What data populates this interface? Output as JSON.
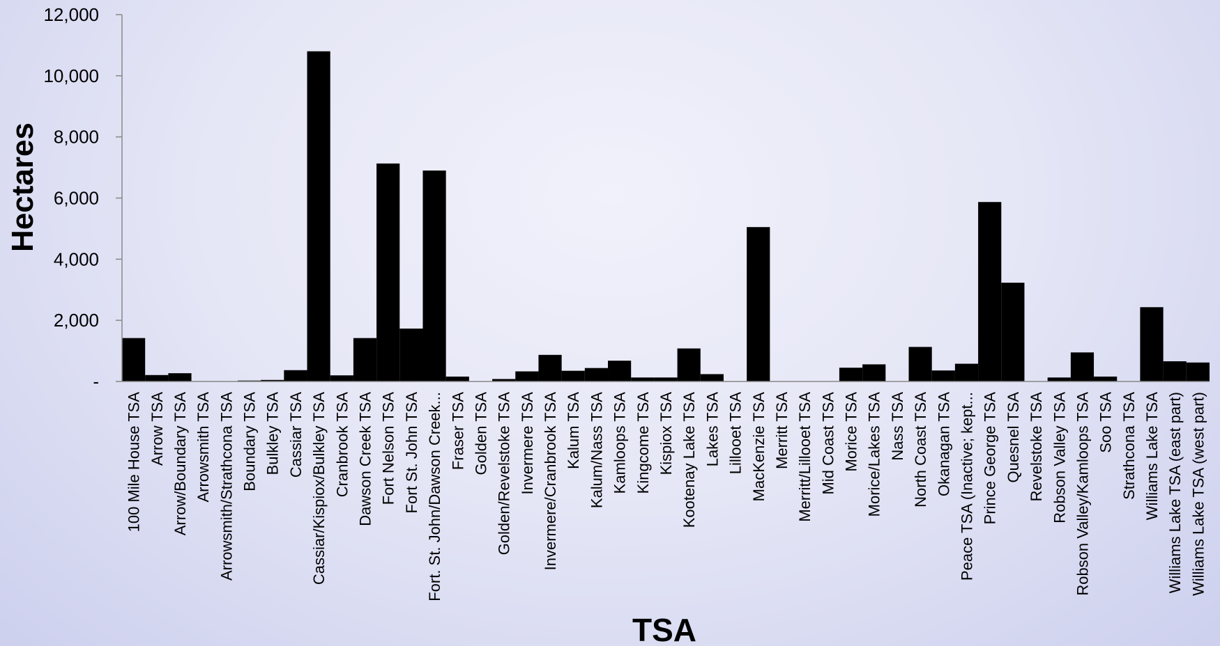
{
  "chart_data": {
    "type": "bar",
    "title": "",
    "xlabel": "TSA",
    "ylabel": "Hectares",
    "ylim": [
      0,
      12000
    ],
    "y_ticks": [
      {
        "value": 0,
        "label": "-"
      },
      {
        "value": 2000,
        "label": "2,000"
      },
      {
        "value": 4000,
        "label": "4,000"
      },
      {
        "value": 6000,
        "label": "6,000"
      },
      {
        "value": 8000,
        "label": "8,000"
      },
      {
        "value": 10000,
        "label": "10,000"
      },
      {
        "value": 12000,
        "label": "12,000"
      }
    ],
    "bar_color": "#000000",
    "grid": false,
    "legend": "none",
    "categories": [
      "100 Mile House TSA",
      "Arrow TSA",
      "Arrow/Boundary TSA",
      "Arrowsmith TSA",
      "Arrowsmith/Strathcona TSA",
      "Boundary TSA",
      "Bulkley TSA",
      "Cassiar TSA",
      "Cassiar/Kispiox/Bulkley TSA",
      "Cranbrook TSA",
      "Dawson Creek TSA",
      "Fort Nelson TSA",
      "Fort St. John TSA",
      "Fort. St. John/Dawson Creek...",
      "Fraser TSA",
      "Golden TSA",
      "Golden/Revelstoke TSA",
      "Invermere TSA",
      "Invermere/Cranbrook TSA",
      "Kalum TSA",
      "Kalum/Nass TSA",
      "Kamloops TSA",
      "Kingcome TSA",
      "Kispiox TSA",
      "Kootenay Lake TSA",
      "Lakes TSA",
      "Lillooet TSA",
      "MacKenzie TSA",
      "Merritt TSA",
      "Merritt/Lillooet TSA",
      "Mid Coast TSA",
      "Morice TSA",
      "Morice/Lakes TSA",
      "Nass TSA",
      "North Coast TSA",
      "Okanagan TSA",
      "Peace TSA (Inactive; kept...",
      "Prince George TSA",
      "Quesnel TSA",
      "Revelstoke TSA",
      "Robson Valley TSA",
      "Robson Valley/Kamloops TSA",
      "Soo TSA",
      "Strathcona TSA",
      "Williams Lake TSA",
      "Williams Lake TSA (east part)",
      "Williams Lake TSA (west part)"
    ],
    "values": [
      1420,
      210,
      270,
      0,
      0,
      30,
      50,
      370,
      10800,
      200,
      1420,
      7130,
      1730,
      6900,
      160,
      0,
      80,
      330,
      870,
      350,
      440,
      680,
      130,
      130,
      1080,
      240,
      0,
      5050,
      0,
      0,
      0,
      450,
      560,
      0,
      1130,
      360,
      580,
      5870,
      3230,
      0,
      130,
      950,
      160,
      0,
      2430,
      660,
      620
    ]
  }
}
